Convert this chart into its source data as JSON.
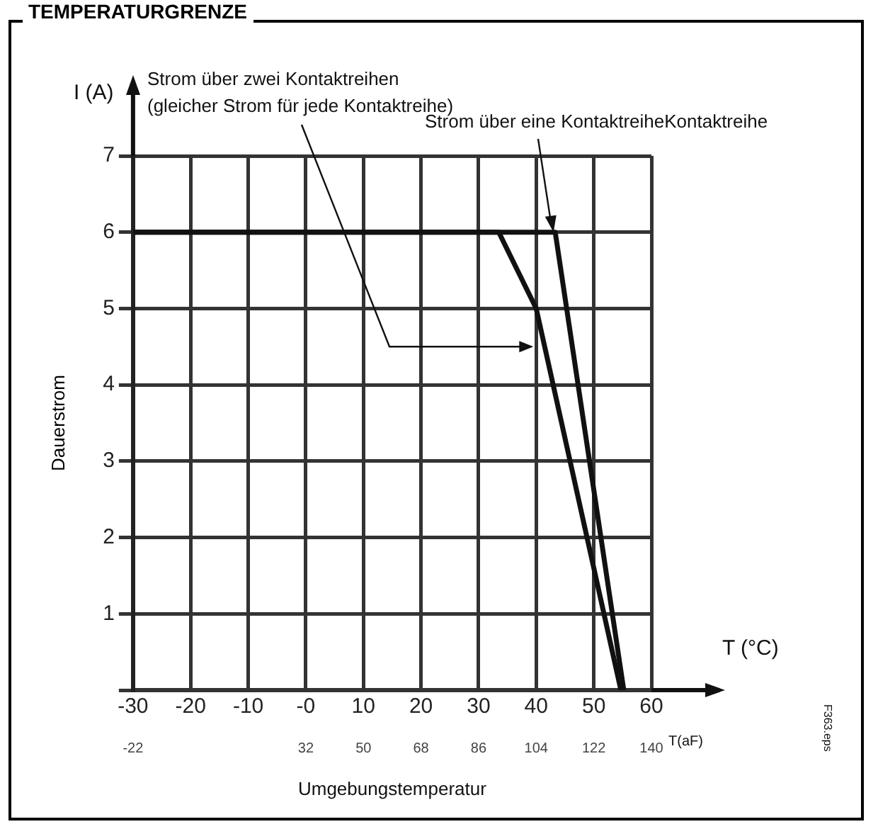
{
  "chart_data": {
    "type": "line",
    "title": "TEMPERATURGRENZE",
    "xlabel": "Umgebungstemperatur",
    "ylabel": "Dauerstrom",
    "x2label": "T(aF)",
    "annotations": [
      "I (A)",
      "T (°C)",
      {
        "text": "Strom über zwei Kontaktreihen\n(gleicher Strom für jede Kontaktreihe)",
        "x": 40,
        "y": 4.5
      },
      {
        "text": "Strom über eine KontaktreiheKontaktreihe",
        "x": 43,
        "y": 6
      },
      "F363.eps"
    ],
    "series": [
      {
        "color": "#111111",
        "x": [
          -30,
          33.5,
          40,
          54.7
        ],
        "values": [
          6,
          6,
          5,
          0
        ]
      },
      {
        "color": "#111111",
        "x": [
          -30,
          43.3,
          55.2
        ],
        "values": [
          6,
          6,
          0
        ]
      }
    ],
    "xlim": [
      -30,
      60
    ],
    "xticks": [
      -30,
      -20,
      -10,
      {
        "value": 0,
        "label": "-0"
      },
      10,
      20,
      30,
      40,
      50,
      60
    ],
    "x2lim": [
      -22,
      140
    ],
    "x2ticks": [
      -22,
      32,
      50,
      68,
      86,
      104,
      122,
      140
    ],
    "ylim": [
      0,
      7
    ],
    "yticks": [
      {
        "value": 0,
        "label": null
      },
      1,
      2,
      3,
      4,
      5,
      6,
      7
    ],
    "grid": true,
    "legend": false,
    "marker": "none",
    "line_style": "solid"
  }
}
